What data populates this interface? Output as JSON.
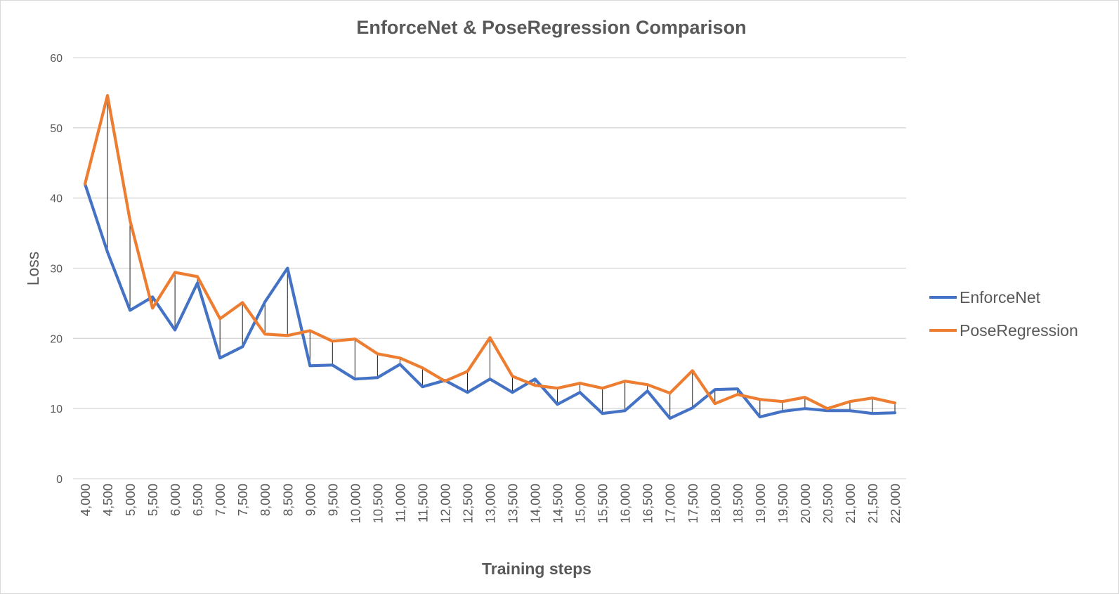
{
  "chart_data": {
    "type": "line",
    "title": "EnforceNet & PoseRegression Comparison",
    "xlabel": "Training steps",
    "ylabel": "Loss",
    "ylim": [
      0,
      60
    ],
    "yticks": [
      "0",
      "10",
      "20",
      "30",
      "40",
      "50",
      "60"
    ],
    "grid": "horizontal",
    "legend_position": "right",
    "drop_lines": true,
    "categories": [
      "4,000",
      "4,500",
      "5,000",
      "5,500",
      "6,000",
      "6,500",
      "7,000",
      "7,500",
      "8,000",
      "8,500",
      "9,000",
      "9,500",
      "10,000",
      "10,500",
      "11,000",
      "11,500",
      "12,000",
      "12,500",
      "13,000",
      "13,500",
      "14,000",
      "14,500",
      "15,000",
      "15,500",
      "16,000",
      "16,500",
      "17,000",
      "17,500",
      "18,000",
      "18,500",
      "19,000",
      "19,500",
      "20,000",
      "20,500",
      "21,000",
      "21,500",
      "22,000"
    ],
    "series": [
      {
        "name": "EnforceNet",
        "color": "#4472c4",
        "values": [
          42,
          32.3,
          24,
          25.9,
          21.2,
          27.9,
          17.2,
          18.8,
          25.2,
          30,
          16.1,
          16.2,
          14.2,
          14.4,
          16.3,
          13.1,
          14,
          12.3,
          14.2,
          12.3,
          14.2,
          10.6,
          12.3,
          9.3,
          9.7,
          12.5,
          8.6,
          10.1,
          12.7,
          12.8,
          8.8,
          9.6,
          10,
          9.7,
          9.7,
          9.3,
          9.4
        ]
      },
      {
        "name": "PoseRegression",
        "color": "#ed7d31",
        "values": [
          42,
          54.6,
          36.8,
          24.3,
          29.4,
          28.8,
          22.8,
          25.1,
          20.6,
          20.4,
          21.1,
          19.6,
          19.9,
          17.8,
          17.2,
          15.8,
          13.9,
          15.3,
          20.1,
          14.6,
          13.3,
          12.9,
          13.6,
          12.9,
          13.9,
          13.4,
          12.2,
          15.4,
          10.7,
          12,
          11.3,
          11,
          11.6,
          10,
          11,
          11.5,
          10.8
        ]
      }
    ]
  }
}
